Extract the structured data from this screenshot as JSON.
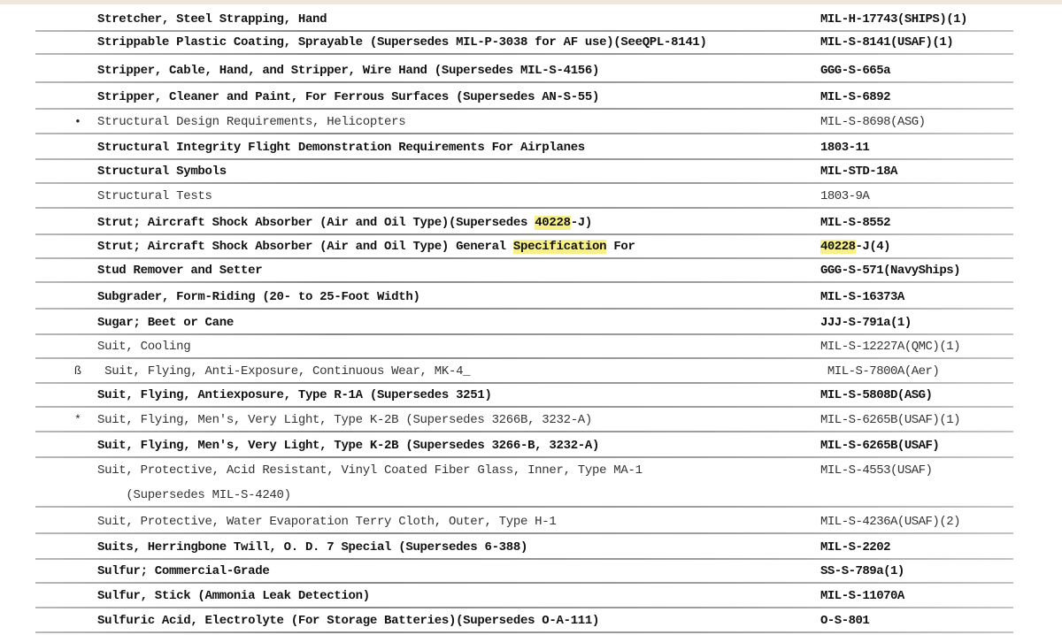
{
  "document": {
    "rows": [
      {
        "desc": [
          {
            "t": "Stretcher, Steel Strapping, Hand"
          }
        ],
        "code": [
          {
            "t": "MIL-H-17743(SHIPS)(1)"
          }
        ],
        "bold": true
      },
      {
        "desc": [
          {
            "t": "Strippable Plastic Coating, Sprayable (Supersedes MIL-P-3038 for AF use)(SeeQPL-8141)"
          }
        ],
        "code": [
          {
            "t": "MIL-S-8141(USAF)(1)"
          }
        ],
        "bold": true
      },
      {
        "desc": [
          {
            "t": "Stripper, Cable, Hand, and Stripper, Wire Hand (Supersedes MIL-S-4156)"
          }
        ],
        "code": [
          {
            "t": "GGG-S-665a"
          }
        ],
        "bold": true
      },
      {
        "desc": [
          {
            "t": "Stripper, Cleaner and Paint, For Ferrous Surfaces (Supersedes AN-S-55)"
          }
        ],
        "code": [
          {
            "t": "MIL-S-6892"
          }
        ],
        "bold": true
      },
      {
        "marker": "•",
        "desc": [
          {
            "t": "Structural Design Requirements, Helicopters"
          }
        ],
        "code": [
          {
            "t": "MIL-S-8698(ASG)"
          }
        ],
        "bold": false
      },
      {
        "desc": [
          {
            "t": "Structural Integrity Flight Demonstration Requirements For Airplanes"
          }
        ],
        "code": [
          {
            "t": "1803-11"
          }
        ],
        "bold": true
      },
      {
        "desc": [
          {
            "t": "Structural Symbols"
          }
        ],
        "code": [
          {
            "t": "MIL-STD-18A"
          }
        ],
        "bold": true
      },
      {
        "desc": [
          {
            "t": "Structural Tests"
          }
        ],
        "code": [
          {
            "t": "1803-9A"
          }
        ],
        "bold": false
      },
      {
        "desc": [
          {
            "t": "Strut; Aircraft Shock Absorber (Air and Oil Type)(Supersedes "
          },
          {
            "t": "40228",
            "hl": true
          },
          {
            "t": "-J)"
          }
        ],
        "code": [
          {
            "t": "MIL-S-8552"
          }
        ],
        "bold": true
      },
      {
        "desc": [
          {
            "t": "Strut; Aircraft Shock Absorber (Air and Oil Type) General "
          },
          {
            "t": "Specification",
            "hl": true
          },
          {
            "t": " For"
          }
        ],
        "code": [
          {
            "t": "40228",
            "hl": true
          },
          {
            "t": "-J(4)"
          }
        ],
        "bold": true
      },
      {
        "desc": [
          {
            "t": "Stud Remover and Setter"
          }
        ],
        "code": [
          {
            "t": "GGG-S-571(NavyShips)"
          }
        ],
        "bold": true
      },
      {
        "desc": [
          {
            "t": "Subgrader, Form-Riding (20- to 25-Foot Width)"
          }
        ],
        "code": [
          {
            "t": "MIL-S-16373A"
          }
        ],
        "bold": true
      },
      {
        "desc": [
          {
            "t": "Sugar; Beet or Cane"
          }
        ],
        "code": [
          {
            "t": "JJJ-S-791a(1)"
          }
        ],
        "bold": true
      },
      {
        "desc": [
          {
            "t": "Suit, Cooling"
          }
        ],
        "code": [
          {
            "t": "MIL-S-12227A(QMC)(1)"
          }
        ],
        "bold": false
      },
      {
        "marker": "ß",
        "desc": [
          {
            "t": " Suit, Flying, Anti-Exposure, Continuous Wear, MK-4_"
          }
        ],
        "code": [
          {
            "t": " MIL-S-7800A(Aer)"
          }
        ],
        "bold": false
      },
      {
        "desc": [
          {
            "t": "Suit, Flying, Antiexposure, Type R-1A (Supersedes 3251)"
          }
        ],
        "code": [
          {
            "t": "MIL-S-5808D(ASG)"
          }
        ],
        "bold": true
      },
      {
        "marker": "*",
        "desc": [
          {
            "t": "Suit, Flying, Men's, Very Light, Type K-2B (Supersedes 3266B, 3232-A)"
          }
        ],
        "code": [
          {
            "t": "MIL-S-6265B(USAF)(1)"
          }
        ],
        "bold": false
      },
      {
        "desc": [
          {
            "t": "Suit, Flying, Men's, Very Light, Type K-2B (Supersedes 3266-B, 3232-A)"
          }
        ],
        "code": [
          {
            "t": "MIL-S-6265B(USAF)"
          }
        ],
        "bold": true
      },
      {
        "desc": [
          {
            "t": "Suit, Protective, Acid Resistant, Vinyl Coated Fiber Glass, Inner, Type MA-1"
          }
        ],
        "code": [
          {
            "t": "MIL-S-4553(USAF)"
          }
        ],
        "bold": false,
        "noline": true
      },
      {
        "desc": [
          {
            "t": "    (Supersedes MIL-S-4240)"
          }
        ],
        "code": [],
        "bold": false
      },
      {
        "desc": [
          {
            "t": "Suit, Protective, Water Evaporation Terry Cloth, Outer, Type H-1"
          }
        ],
        "code": [
          {
            "t": "MIL-S-4236A(USAF)(2)"
          }
        ],
        "bold": false
      },
      {
        "desc": [
          {
            "t": "Suits, Herringbone Twill, O. D. 7 Special (Supersedes 6-388)"
          }
        ],
        "code": [
          {
            "t": "MIL-S-2202"
          }
        ],
        "bold": true
      },
      {
        "desc": [
          {
            "t": "Sulfur; Commercial-Grade"
          }
        ],
        "code": [
          {
            "t": "SS-S-789a(1)"
          }
        ],
        "bold": true
      },
      {
        "desc": [
          {
            "t": "Sulfur, Stick (Ammonia Leak Detection)"
          }
        ],
        "code": [
          {
            "t": "MIL-S-11070A"
          }
        ],
        "bold": true
      },
      {
        "desc": [
          {
            "t": "Sulfuric Acid, Electrolyte (For Storage Batteries)(Supersedes O-A-111)"
          }
        ],
        "code": [
          {
            "t": "O-S-801"
          }
        ],
        "bold": true
      }
    ]
  }
}
